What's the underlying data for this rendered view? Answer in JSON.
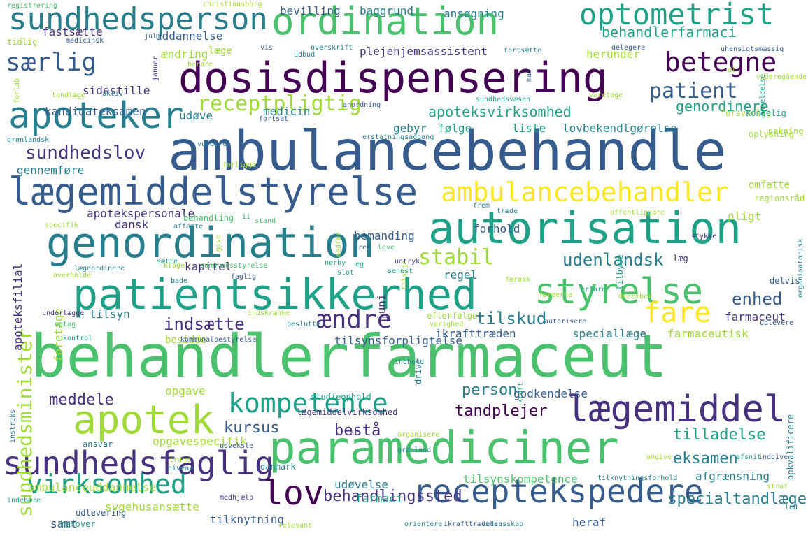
{
  "palette": [
    "#440154",
    "#46327e",
    "#365c8d",
    "#277f8e",
    "#1fa187",
    "#4ac16d",
    "#a0da39",
    "#fde725"
  ],
  "words": [
    {
      "text": "behandlerfarmaceut",
      "color": 5
    },
    {
      "text": "ambulancebehandle",
      "color": 2
    },
    {
      "text": "dosisdispensering",
      "color": 0
    },
    {
      "text": "paramediciner",
      "color": 5
    },
    {
      "text": "autorisation",
      "color": 4
    },
    {
      "text": "patientsikkerhed",
      "color": 4
    },
    {
      "text": "genordination",
      "color": 3
    },
    {
      "text": "lægemiddelstyrelse",
      "color": 2
    },
    {
      "text": "ordination",
      "color": 5
    },
    {
      "text": "receptekspedere",
      "color": 2
    },
    {
      "text": "lægemiddel",
      "color": 1
    },
    {
      "text": "apoteker",
      "color": 3
    },
    {
      "text": "sundhedsfaglig",
      "color": 1
    },
    {
      "text": "kompetence",
      "color": 4
    },
    {
      "text": "apotek",
      "color": 6
    },
    {
      "text": "sundhedsperson",
      "color": 3
    },
    {
      "text": "optometrist",
      "color": 4
    },
    {
      "text": "styrelse",
      "color": 5
    },
    {
      "text": "ambulancebehandler",
      "color": 7
    },
    {
      "text": "virksomhed",
      "color": 4
    },
    {
      "text": "lov",
      "color": 0
    },
    {
      "text": "fare",
      "color": 7
    },
    {
      "text": "betegne",
      "color": 0
    },
    {
      "text": "særlig",
      "color": 2
    },
    {
      "text": "ændre",
      "color": 1
    },
    {
      "text": "patient",
      "color": 2
    },
    {
      "text": "receptpligtig",
      "color": 6
    },
    {
      "text": "sundhedsminister",
      "color": 6
    },
    {
      "text": "behandlerfarmaci",
      "color": 4
    },
    {
      "text": "stabil",
      "color": 6
    },
    {
      "text": "udenlandsk",
      "color": 3
    },
    {
      "text": "sundhedslov",
      "color": 1
    },
    {
      "text": "apoteksvirksomhed",
      "color": 4
    },
    {
      "text": "indsætte",
      "color": 1
    },
    {
      "text": "tilskud",
      "color": 3
    },
    {
      "text": "enhed",
      "color": 2
    },
    {
      "text": "genordinere",
      "color": 4
    },
    {
      "text": "behandlingssted",
      "color": 1
    },
    {
      "text": "specialtandlæge",
      "color": 3
    },
    {
      "text": "tilladelse",
      "color": 4
    },
    {
      "text": "eksamen",
      "color": 3
    },
    {
      "text": "tandplejer",
      "color": 0
    },
    {
      "text": "meddele",
      "color": 1
    },
    {
      "text": "kursus",
      "color": 2
    },
    {
      "text": "person",
      "color": 3
    },
    {
      "text": "bestå",
      "color": 1
    },
    {
      "text": "plejehjemsassistent",
      "color": 1
    },
    {
      "text": "uddannelse",
      "color": 2
    },
    {
      "text": "fastsætte",
      "color": 1
    },
    {
      "text": "kandidateksamen",
      "color": 2
    },
    {
      "text": "medicin",
      "color": 3
    },
    {
      "text": "følge",
      "color": 4
    },
    {
      "text": "liste",
      "color": 4
    },
    {
      "text": "gebyr",
      "color": 3
    },
    {
      "text": "lovbekendtgørelse",
      "color": 3
    },
    {
      "text": "udøve",
      "color": 3
    },
    {
      "text": "gennemføre",
      "color": 3
    },
    {
      "text": "apotekspersonale",
      "color": 1
    },
    {
      "text": "dansk",
      "color": 1
    },
    {
      "text": "forhold",
      "color": 2
    },
    {
      "text": "bemanding",
      "color": 2
    },
    {
      "text": "regel",
      "color": 3
    },
    {
      "text": "kapitel",
      "color": 1
    },
    {
      "text": "ikrafttræden",
      "color": 2
    },
    {
      "text": "speciallæge",
      "color": 3
    },
    {
      "text": "farmaceutisk",
      "color": 6
    },
    {
      "text": "farmaceut",
      "color": 1
    },
    {
      "text": "tilsyn",
      "color": 3
    },
    {
      "text": "foretage",
      "color": 6
    },
    {
      "text": "apoteksfilial",
      "color": 1
    },
    {
      "text": "pligt",
      "color": 6
    },
    {
      "text": "lægeordinere",
      "color": 3
    },
    {
      "text": "sundhedsstyrelse",
      "color": 5
    },
    {
      "text": "godkendelse",
      "color": 2
    },
    {
      "text": "afgrænsning",
      "color": 3
    },
    {
      "text": "ambulanceuddannelse",
      "color": 6
    },
    {
      "text": "udøvelse",
      "color": 3
    },
    {
      "text": "tilsynskompetence",
      "color": 5
    },
    {
      "text": "tilknytningsforhold",
      "color": 3
    },
    {
      "text": "sygehusansætte",
      "color": 6
    },
    {
      "text": "tilknytning",
      "color": 2
    },
    {
      "text": "heraf",
      "color": 2
    },
    {
      "text": "samt",
      "color": 2
    },
    {
      "text": "herover",
      "color": 4
    },
    {
      "text": "farmaci",
      "color": 4
    },
    {
      "text": "opgavespecifik",
      "color": 6
    },
    {
      "text": "opgave",
      "color": 6
    },
    {
      "text": "ansvar",
      "color": 3
    },
    {
      "text": "studieophold",
      "color": 4
    },
    {
      "text": "lægemiddelvirksomhed",
      "color": 1
    },
    {
      "text": "udveksle",
      "color": 2
    },
    {
      "text": "danmark",
      "color": 3
    },
    {
      "text": "medhjælp",
      "color": 1
    },
    {
      "text": "vidensskab",
      "color": 3
    },
    {
      "text": "bevilling",
      "color": 2
    },
    {
      "text": "baggrund",
      "color": 3
    },
    {
      "text": "ansøgning",
      "color": 3
    },
    {
      "text": "herunder",
      "color": 6
    },
    {
      "text": "ændring",
      "color": 6
    },
    {
      "text": "læge",
      "color": 6
    },
    {
      "text": "sidestille",
      "color": 1
    },
    {
      "text": "omfatte",
      "color": 6
    },
    {
      "text": "regionsråd",
      "color": 6
    },
    {
      "text": "opkvalificere",
      "color": 3
    },
    {
      "text": "organisatorisk",
      "color": 3
    },
    {
      "text": "tilbyde",
      "color": 4
    },
    {
      "text": "delvis",
      "color": 2
    },
    {
      "text": "udlevere",
      "color": 2
    },
    {
      "text": "drive",
      "color": 3
    },
    {
      "text": "kraft",
      "color": 4
    },
    {
      "text": "juni",
      "color": 1
    },
    {
      "text": "tilsynsforpligtelse",
      "color": 2
    },
    {
      "text": "besidde",
      "color": 6
    },
    {
      "text": "forsvarlig",
      "color": 6
    },
    {
      "text": "oplysning",
      "color": 6
    },
    {
      "text": "kongelig",
      "color": 4
    },
    {
      "text": "pakning",
      "color": 6
    },
    {
      "text": "registrering",
      "color": 5
    },
    {
      "text": "christiansborg",
      "color": 6
    },
    {
      "text": "medicinsk",
      "color": 2
    },
    {
      "text": "juli",
      "color": 2
    },
    {
      "text": "tidlig",
      "color": 6
    },
    {
      "text": "vis",
      "color": 2
    },
    {
      "text": "udbud",
      "color": 3
    },
    {
      "text": "overskrift",
      "color": 3
    },
    {
      "text": "fortsætte",
      "color": 3
    },
    {
      "text": "delegere",
      "color": 2
    },
    {
      "text": "uhensigtsmæssig",
      "color": 2
    },
    {
      "text": "anordning",
      "color": 2
    },
    {
      "text": "sundhedsvæsen",
      "color": 4
    },
    {
      "text": "fortsat",
      "color": 2
    },
    {
      "text": "erstatningsadgang",
      "color": 3
    },
    {
      "text": "tandlæge",
      "color": 6
    },
    {
      "text": "aktiv",
      "color": 3
    },
    {
      "text": "januar",
      "color": 1
    },
    {
      "text": "berøre",
      "color": 6
    },
    {
      "text": "grønlandsk",
      "color": 3
    },
    {
      "text": "vurdere",
      "color": 3
    },
    {
      "text": "forligge",
      "color": 6
    },
    {
      "text": "affatte",
      "color": 3
    },
    {
      "text": "behandling",
      "color": 5
    },
    {
      "text": "specifik",
      "color": 6
    },
    {
      "text": "stand",
      "color": 5
    },
    {
      "text": "medfør",
      "color": 6
    },
    {
      "text": "ret",
      "color": 2
    },
    {
      "text": "leve",
      "color": 5
    },
    {
      "text": "frem",
      "color": 3
    },
    {
      "text": "træde",
      "color": 3
    },
    {
      "text": "offentliggøre",
      "color": 6
    },
    {
      "text": "stykke",
      "color": 1
    },
    {
      "text": "læg",
      "color": 1
    },
    {
      "text": "slot",
      "color": 4
    },
    {
      "text": "udtryk",
      "color": 1
    },
    {
      "text": "tilsige",
      "color": 6
    },
    {
      "text": "nørby",
      "color": 4
    },
    {
      "text": "senest",
      "color": 4
    },
    {
      "text": "klage",
      "color": 6
    },
    {
      "text": "overholde",
      "color": 6
    },
    {
      "text": "faglig",
      "color": 2
    },
    {
      "text": "underlægge",
      "color": 1
    },
    {
      "text": "optag",
      "color": 5
    },
    {
      "text": "kontrol",
      "color": 4
    },
    {
      "text": "indskrænke",
      "color": 6
    },
    {
      "text": "beslutte",
      "color": 3
    },
    {
      "text": "kommunalbestyrelse",
      "color": 2
    },
    {
      "text": "efterfølge",
      "color": 6
    },
    {
      "text": "varighed",
      "color": 6
    },
    {
      "text": "autorisere",
      "color": 2
    },
    {
      "text": "erfare",
      "color": 4
    },
    {
      "text": "december",
      "color": 6
    },
    {
      "text": "føreerne",
      "color": 6
    },
    {
      "text": "færøsk",
      "color": 6
    },
    {
      "text": "indhold",
      "color": 3
    },
    {
      "text": "trane",
      "color": 6
    },
    {
      "text": "niveau",
      "color": 3
    },
    {
      "text": "instruks",
      "color": 3
    },
    {
      "text": "organisere",
      "color": 6
    },
    {
      "text": "grønland",
      "color": 3
    },
    {
      "text": "angive",
      "color": 6
    },
    {
      "text": "afsnit",
      "color": 4
    },
    {
      "text": "indgive",
      "color": 2
    },
    {
      "text": "straf",
      "color": 6
    },
    {
      "text": "led",
      "color": 3
    },
    {
      "text": "indebære",
      "color": 4
    },
    {
      "text": "udlevering",
      "color": 2
    },
    {
      "text": "relevant",
      "color": 6
    },
    {
      "text": "orientere",
      "color": 3
    },
    {
      "text": "ikrafttrædelse",
      "color": 2
    },
    {
      "text": "forlab",
      "color": 6
    },
    {
      "text": "maj",
      "color": 2
    },
    {
      "text": "give",
      "color": 6
    },
    {
      "text": "ii",
      "color": 4
    },
    {
      "text": "bade",
      "color": 3
    },
    {
      "text": "eg",
      "color": 4
    },
    {
      "text": "varetage",
      "color": 6
    },
    {
      "text": "anmeldelse",
      "color": 4
    },
    {
      "text": "videregående",
      "color": 6
    },
    {
      "text": "sætte",
      "color": 4
    },
    {
      "text": "al",
      "color": 1
    },
    {
      "text": "al",
      "color": 6
    }
  ]
}
